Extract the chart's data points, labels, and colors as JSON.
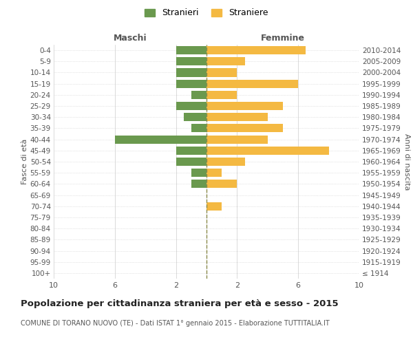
{
  "age_groups": [
    "100+",
    "95-99",
    "90-94",
    "85-89",
    "80-84",
    "75-79",
    "70-74",
    "65-69",
    "60-64",
    "55-59",
    "50-54",
    "45-49",
    "40-44",
    "35-39",
    "30-34",
    "25-29",
    "20-24",
    "15-19",
    "10-14",
    "5-9",
    "0-4"
  ],
  "birth_years": [
    "≤ 1914",
    "1915-1919",
    "1920-1924",
    "1925-1929",
    "1930-1934",
    "1935-1939",
    "1940-1944",
    "1945-1949",
    "1950-1954",
    "1955-1959",
    "1960-1964",
    "1965-1969",
    "1970-1974",
    "1975-1979",
    "1980-1984",
    "1985-1989",
    "1990-1994",
    "1995-1999",
    "2000-2004",
    "2005-2009",
    "2010-2014"
  ],
  "maschi": [
    0,
    0,
    0,
    0,
    0,
    0,
    0,
    0,
    1,
    1,
    2,
    2,
    6,
    1,
    1.5,
    2,
    1,
    2,
    2,
    2,
    2
  ],
  "femmine": [
    0,
    0,
    0,
    0,
    0,
    0,
    1,
    0,
    2,
    1,
    2.5,
    8,
    4,
    5,
    4,
    5,
    2,
    6,
    2,
    2.5,
    6.5
  ],
  "color_maschi": "#6a994e",
  "color_femmine": "#f4b942",
  "color_center_line": "#8b8b4b",
  "bg_color": "#ffffff",
  "grid_color": "#cccccc",
  "title": "Popolazione per cittadinanza straniera per età e sesso - 2015",
  "subtitle": "COMUNE DI TORANO NUOVO (TE) - Dati ISTAT 1° gennaio 2015 - Elaborazione TUTTITALIA.IT",
  "xlabel_left": "Maschi",
  "xlabel_right": "Femmine",
  "ylabel_left": "Fasce di età",
  "ylabel_right": "Anni di nascita",
  "legend_maschi": "Stranieri",
  "legend_femmine": "Straniere",
  "xlim": 10,
  "bar_height": 0.75
}
